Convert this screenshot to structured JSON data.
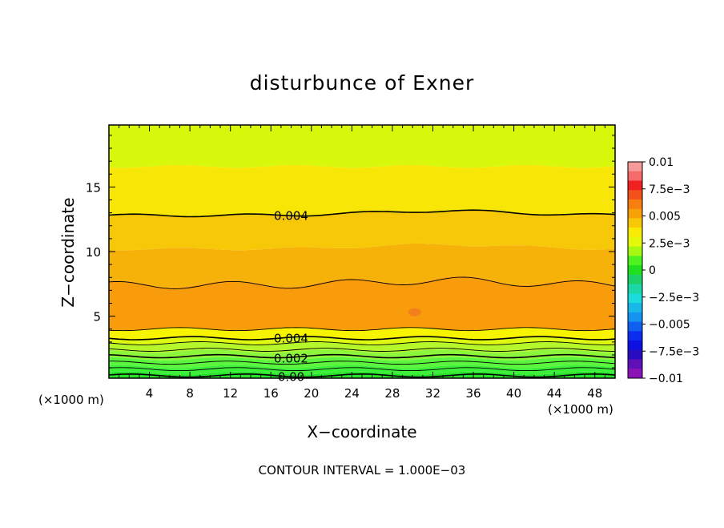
{
  "chart_data": {
    "type": "contour",
    "title": "disturbunce of Exner",
    "xlabel": "X−coordinate",
    "ylabel": "Z−coordinate",
    "x_unit": "(×1000 m)",
    "z_unit": "(×1000 m)",
    "xlim": [
      0,
      50
    ],
    "ylim": [
      0.2,
      19.8
    ],
    "x_ticks": [
      4,
      8,
      12,
      16,
      20,
      24,
      28,
      32,
      36,
      40,
      44,
      48
    ],
    "y_ticks": [
      5,
      10,
      15
    ],
    "footer": "CONTOUR INTERVAL = 1.000E−03",
    "contour_interval": 0.001,
    "contour_labels": [
      {
        "text": "0.004",
        "x": 18,
        "z": 12.8
      },
      {
        "text": "0.004",
        "x": 18,
        "z": 3.2
      },
      {
        "text": "0.002",
        "x": 18,
        "z": 1.8
      },
      {
        "text": "0.00",
        "x": 18,
        "z": 0.4
      }
    ],
    "bands": [
      {
        "from": 0.0,
        "to": 0.2,
        "color": "#1fd21f"
      },
      {
        "from": 0.2,
        "to": 0.6,
        "color": "#27e42a"
      },
      {
        "from": 0.6,
        "to": 1.1,
        "color": "#3cf03a"
      },
      {
        "from": 1.1,
        "to": 1.7,
        "color": "#5cf53d"
      },
      {
        "from": 1.7,
        "to": 2.3,
        "color": "#8bf63a"
      },
      {
        "from": 2.3,
        "to": 2.9,
        "color": "#b6f72c"
      },
      {
        "from": 2.9,
        "to": 3.3,
        "color": "#ddf811"
      },
      {
        "from": 3.3,
        "to": 4.0,
        "color": "#f8f400"
      },
      {
        "from": 4.0,
        "to": 7.5,
        "color": "#f89c0b"
      },
      {
        "from": 7.5,
        "to": 10.2,
        "color": "#f7b20a"
      },
      {
        "from": 10.2,
        "to": 12.8,
        "color": "#f7c807"
      },
      {
        "from": 12.8,
        "to": 16.6,
        "color": "#f8e706"
      },
      {
        "from": 16.6,
        "to": 19.8,
        "color": "#d8f80b"
      }
    ],
    "contour_lines_z": [
      0.4,
      0.9,
      1.4,
      1.9,
      2.4,
      2.9,
      3.3,
      4.0,
      7.4,
      12.8
    ],
    "local_max": {
      "x": 30.2,
      "z": 5.3,
      "color": "#f4801b"
    },
    "colorbar": {
      "labels": [
        "0.01",
        "7.5e−3",
        "0.005",
        "2.5e−3",
        "0",
        "−2.5e−3",
        "−0.005",
        "−7.5e−3",
        "−0.01"
      ],
      "colors": [
        "#f79a9a",
        "#f76a6a",
        "#f02020",
        "#f4501a",
        "#f87e10",
        "#f8a008",
        "#f8c806",
        "#f8ec04",
        "#e4f80a",
        "#a8f814",
        "#4ef21e",
        "#1ee01e",
        "#1cd06a",
        "#1cd8a8",
        "#1cdcdc",
        "#18b8e8",
        "#1494f0",
        "#1060f0",
        "#0c2cf0",
        "#0c10e0",
        "#2a0cc0",
        "#6010b8",
        "#8a14b8"
      ]
    }
  }
}
